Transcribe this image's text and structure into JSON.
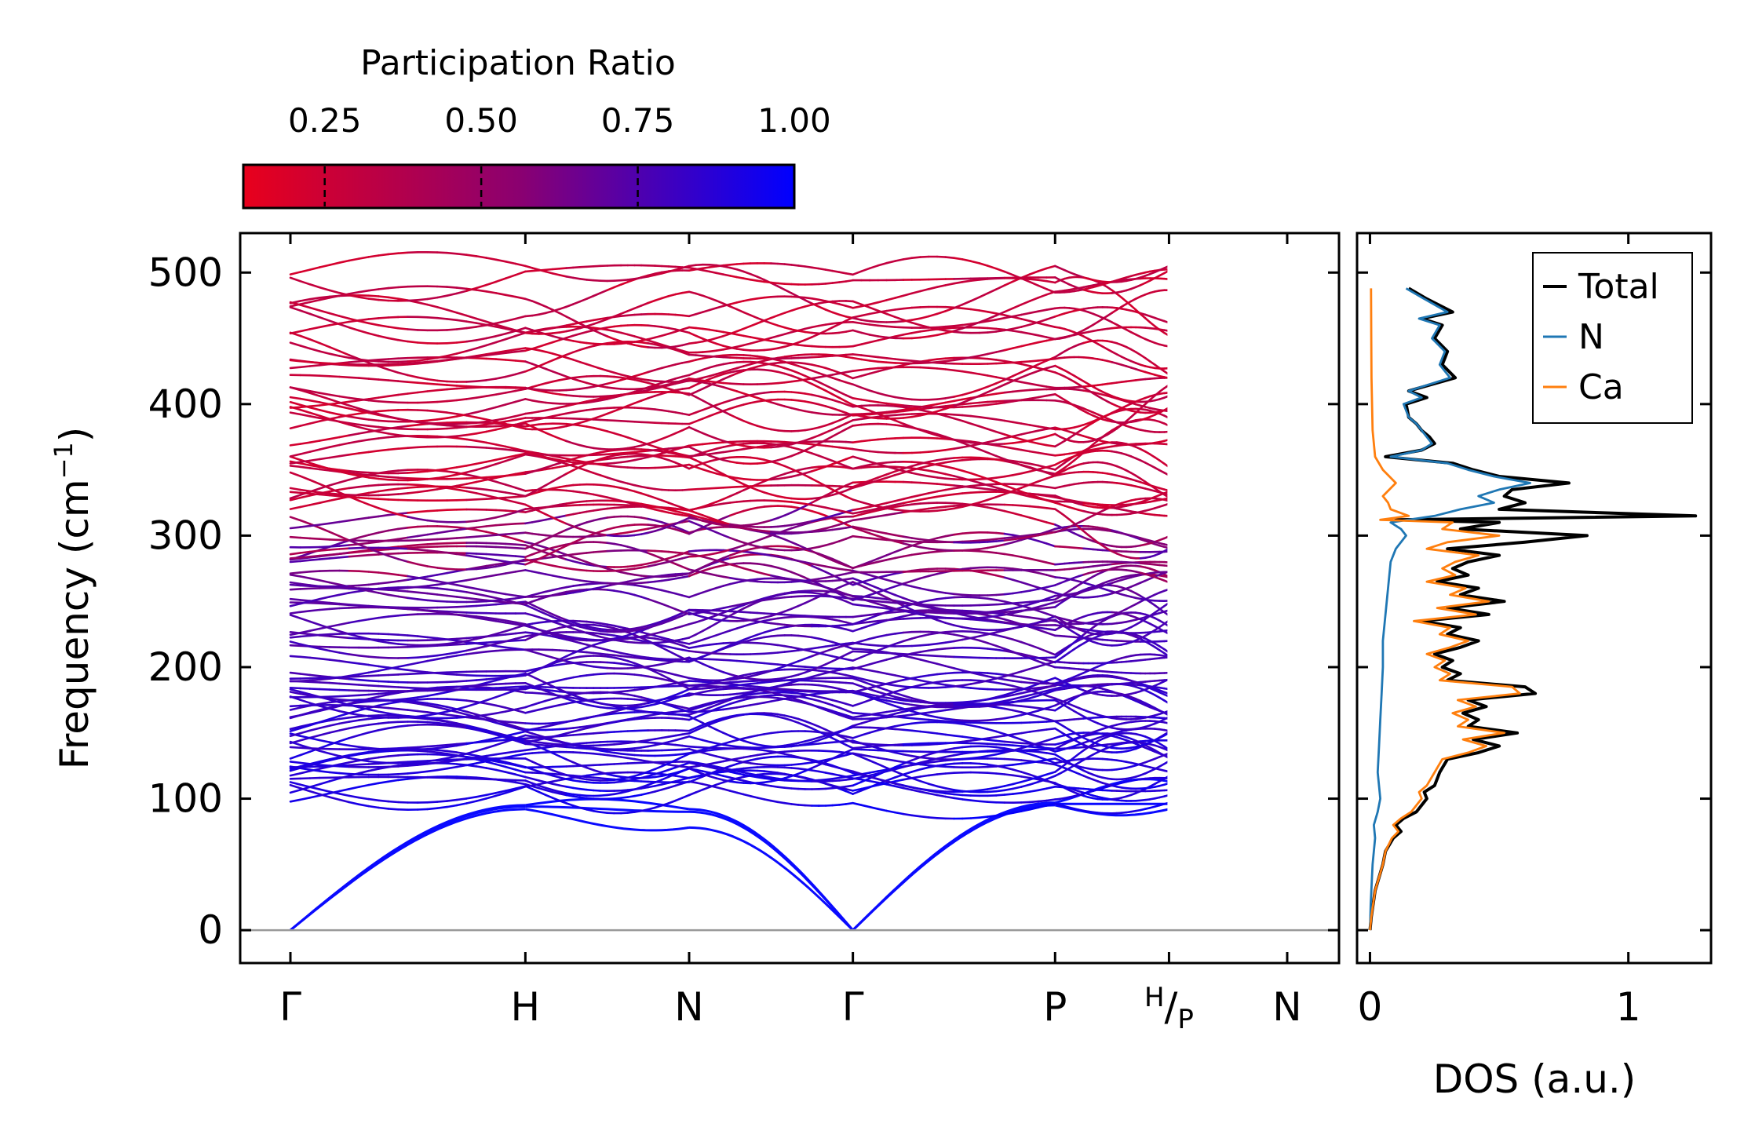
{
  "chart_data": [
    {
      "type": "line",
      "subtype": "phonon-band-structure",
      "ylabel": "Frequency (cm",
      "ylabel_sup": "−1",
      "ylabel_close": ")",
      "ylim": [
        -25,
        530
      ],
      "yticks": [
        0,
        100,
        200,
        300,
        400,
        500
      ],
      "ytick_labels": [
        "0",
        "100",
        "200",
        "300",
        "400",
        "500"
      ],
      "zero_line": true,
      "segments": [
        {
          "start": 0.0,
          "end": 1.65
        },
        {
          "start": 1.65,
          "end": 2.8
        },
        {
          "start": 2.8,
          "end": 3.95
        },
        {
          "start": 3.95,
          "end": 5.37
        },
        {
          "start": 5.37,
          "end": 6.17
        }
      ],
      "high_symmetry_points": [
        {
          "label": "Γ",
          "x": 0.0
        },
        {
          "label": "H",
          "x": 1.65
        },
        {
          "label": "N",
          "x": 2.8
        },
        {
          "label": "Γ",
          "x": 3.95
        },
        {
          "label": "P",
          "x": 5.37
        },
        {
          "label": "H",
          "label_sub": "P",
          "x": 6.17
        },
        {
          "label": "N",
          "x": 7.0
        }
      ],
      "acoustic_branches": {
        "note": "Three acoustic branches start at 0 at each Γ point",
        "max_frequency_cm-1": [
          92,
          96,
          113
        ]
      },
      "optical_band_range_cm-1": [
        75,
        505
      ],
      "colormap": {
        "title": "Participation Ratio",
        "ticks": [
          0.25,
          0.5,
          0.75,
          1.0
        ],
        "tick_labels": [
          "0.25",
          "0.50",
          "0.75",
          "1.00"
        ],
        "range": [
          0.12,
          1.0
        ],
        "color_low": "#e8001c",
        "color_mid": "#8b0070",
        "color_high": "#0000ff"
      }
    },
    {
      "type": "line",
      "subtype": "density-of-states",
      "xlabel": "DOS (a.u.)",
      "xlim": [
        -0.05,
        1.32
      ],
      "xticks": [
        0,
        1
      ],
      "xtick_labels": [
        "0",
        "1"
      ],
      "legend_position": "top-right",
      "series": [
        {
          "name": "Total",
          "color": "#000000",
          "points": [
            [
              0,
              0.0
            ],
            [
              10,
              0.005
            ],
            [
              30,
              0.02
            ],
            [
              50,
              0.05
            ],
            [
              60,
              0.06
            ],
            [
              70,
              0.09
            ],
            [
              75,
              0.12
            ],
            [
              80,
              0.1
            ],
            [
              85,
              0.13
            ],
            [
              90,
              0.18
            ],
            [
              95,
              0.2
            ],
            [
              100,
              0.22
            ],
            [
              105,
              0.21
            ],
            [
              110,
              0.25
            ],
            [
              120,
              0.27
            ],
            [
              130,
              0.3
            ],
            [
              135,
              0.42
            ],
            [
              140,
              0.5
            ],
            [
              145,
              0.4
            ],
            [
              150,
              0.57
            ],
            [
              155,
              0.38
            ],
            [
              160,
              0.42
            ],
            [
              165,
              0.36
            ],
            [
              170,
              0.45
            ],
            [
              175,
              0.38
            ],
            [
              180,
              0.64
            ],
            [
              185,
              0.6
            ],
            [
              190,
              0.3
            ],
            [
              195,
              0.35
            ],
            [
              200,
              0.28
            ],
            [
              205,
              0.32
            ],
            [
              210,
              0.25
            ],
            [
              215,
              0.35
            ],
            [
              220,
              0.42
            ],
            [
              225,
              0.3
            ],
            [
              230,
              0.35
            ],
            [
              235,
              0.2
            ],
            [
              240,
              0.46
            ],
            [
              245,
              0.3
            ],
            [
              250,
              0.52
            ],
            [
              255,
              0.35
            ],
            [
              260,
              0.42
            ],
            [
              265,
              0.26
            ],
            [
              270,
              0.38
            ],
            [
              275,
              0.32
            ],
            [
              280,
              0.38
            ],
            [
              285,
              0.5
            ],
            [
              290,
              0.3
            ],
            [
              295,
              0.6
            ],
            [
              300,
              0.84
            ],
            [
              305,
              0.35
            ],
            [
              310,
              0.5
            ],
            [
              312,
              0.1
            ],
            [
              315,
              1.26
            ],
            [
              320,
              0.5
            ],
            [
              325,
              0.6
            ],
            [
              330,
              0.52
            ],
            [
              335,
              0.55
            ],
            [
              340,
              0.77
            ],
            [
              345,
              0.5
            ],
            [
              350,
              0.4
            ],
            [
              355,
              0.32
            ],
            [
              360,
              0.06
            ],
            [
              365,
              0.2
            ],
            [
              370,
              0.25
            ],
            [
              375,
              0.23
            ],
            [
              380,
              0.2
            ],
            [
              385,
              0.18
            ],
            [
              390,
              0.15
            ],
            [
              400,
              0.14
            ],
            [
              405,
              0.22
            ],
            [
              410,
              0.15
            ],
            [
              420,
              0.33
            ],
            [
              430,
              0.28
            ],
            [
              440,
              0.3
            ],
            [
              450,
              0.25
            ],
            [
              460,
              0.28
            ],
            [
              465,
              0.2
            ],
            [
              470,
              0.32
            ],
            [
              480,
              0.22
            ],
            [
              488,
              0.15
            ]
          ]
        },
        {
          "name": "N",
          "color": "#1f77b4",
          "points": [
            [
              0,
              0.0
            ],
            [
              20,
              0.003
            ],
            [
              50,
              0.01
            ],
            [
              70,
              0.02
            ],
            [
              80,
              0.015
            ],
            [
              90,
              0.03
            ],
            [
              100,
              0.04
            ],
            [
              120,
              0.03
            ],
            [
              140,
              0.035
            ],
            [
              160,
              0.04
            ],
            [
              180,
              0.045
            ],
            [
              200,
              0.05
            ],
            [
              220,
              0.05
            ],
            [
              240,
              0.06
            ],
            [
              260,
              0.07
            ],
            [
              280,
              0.08
            ],
            [
              290,
              0.1
            ],
            [
              300,
              0.14
            ],
            [
              305,
              0.12
            ],
            [
              310,
              0.08
            ],
            [
              315,
              0.25
            ],
            [
              320,
              0.35
            ],
            [
              325,
              0.48
            ],
            [
              330,
              0.42
            ],
            [
              335,
              0.5
            ],
            [
              340,
              0.62
            ],
            [
              345,
              0.48
            ],
            [
              350,
              0.38
            ],
            [
              355,
              0.3
            ],
            [
              360,
              0.08
            ],
            [
              365,
              0.2
            ],
            [
              370,
              0.24
            ],
            [
              375,
              0.22
            ],
            [
              380,
              0.2
            ],
            [
              385,
              0.18
            ],
            [
              390,
              0.15
            ],
            [
              400,
              0.13
            ],
            [
              405,
              0.2
            ],
            [
              410,
              0.15
            ],
            [
              420,
              0.31
            ],
            [
              430,
              0.27
            ],
            [
              440,
              0.29
            ],
            [
              450,
              0.24
            ],
            [
              460,
              0.27
            ],
            [
              465,
              0.19
            ],
            [
              470,
              0.3
            ],
            [
              480,
              0.21
            ],
            [
              488,
              0.14
            ]
          ]
        },
        {
          "name": "Ca",
          "color": "#ff7f0e",
          "points": [
            [
              0,
              0.0
            ],
            [
              10,
              0.005
            ],
            [
              30,
              0.02
            ],
            [
              50,
              0.05
            ],
            [
              60,
              0.06
            ],
            [
              70,
              0.085
            ],
            [
              75,
              0.11
            ],
            [
              80,
              0.09
            ],
            [
              85,
              0.12
            ],
            [
              90,
              0.16
            ],
            [
              95,
              0.18
            ],
            [
              100,
              0.2
            ],
            [
              105,
              0.19
            ],
            [
              110,
              0.22
            ],
            [
              120,
              0.25
            ],
            [
              130,
              0.28
            ],
            [
              135,
              0.38
            ],
            [
              140,
              0.45
            ],
            [
              145,
              0.36
            ],
            [
              150,
              0.52
            ],
            [
              155,
              0.34
            ],
            [
              160,
              0.38
            ],
            [
              165,
              0.32
            ],
            [
              170,
              0.41
            ],
            [
              175,
              0.34
            ],
            [
              180,
              0.58
            ],
            [
              185,
              0.55
            ],
            [
              190,
              0.27
            ],
            [
              195,
              0.31
            ],
            [
              200,
              0.25
            ],
            [
              205,
              0.29
            ],
            [
              210,
              0.22
            ],
            [
              215,
              0.31
            ],
            [
              220,
              0.38
            ],
            [
              225,
              0.27
            ],
            [
              230,
              0.31
            ],
            [
              235,
              0.17
            ],
            [
              240,
              0.41
            ],
            [
              245,
              0.26
            ],
            [
              250,
              0.46
            ],
            [
              255,
              0.31
            ],
            [
              260,
              0.37
            ],
            [
              265,
              0.22
            ],
            [
              270,
              0.33
            ],
            [
              275,
              0.28
            ],
            [
              280,
              0.33
            ],
            [
              285,
              0.42
            ],
            [
              290,
              0.22
            ],
            [
              295,
              0.3
            ],
            [
              300,
              0.5
            ],
            [
              305,
              0.28
            ],
            [
              310,
              0.32
            ],
            [
              312,
              0.04
            ],
            [
              315,
              0.15
            ],
            [
              320,
              0.08
            ],
            [
              325,
              0.07
            ],
            [
              330,
              0.05
            ],
            [
              340,
              0.1
            ],
            [
              350,
              0.05
            ],
            [
              360,
              0.02
            ],
            [
              380,
              0.01
            ],
            [
              400,
              0.008
            ],
            [
              420,
              0.006
            ],
            [
              450,
              0.005
            ],
            [
              488,
              0.004
            ]
          ]
        }
      ]
    }
  ]
}
